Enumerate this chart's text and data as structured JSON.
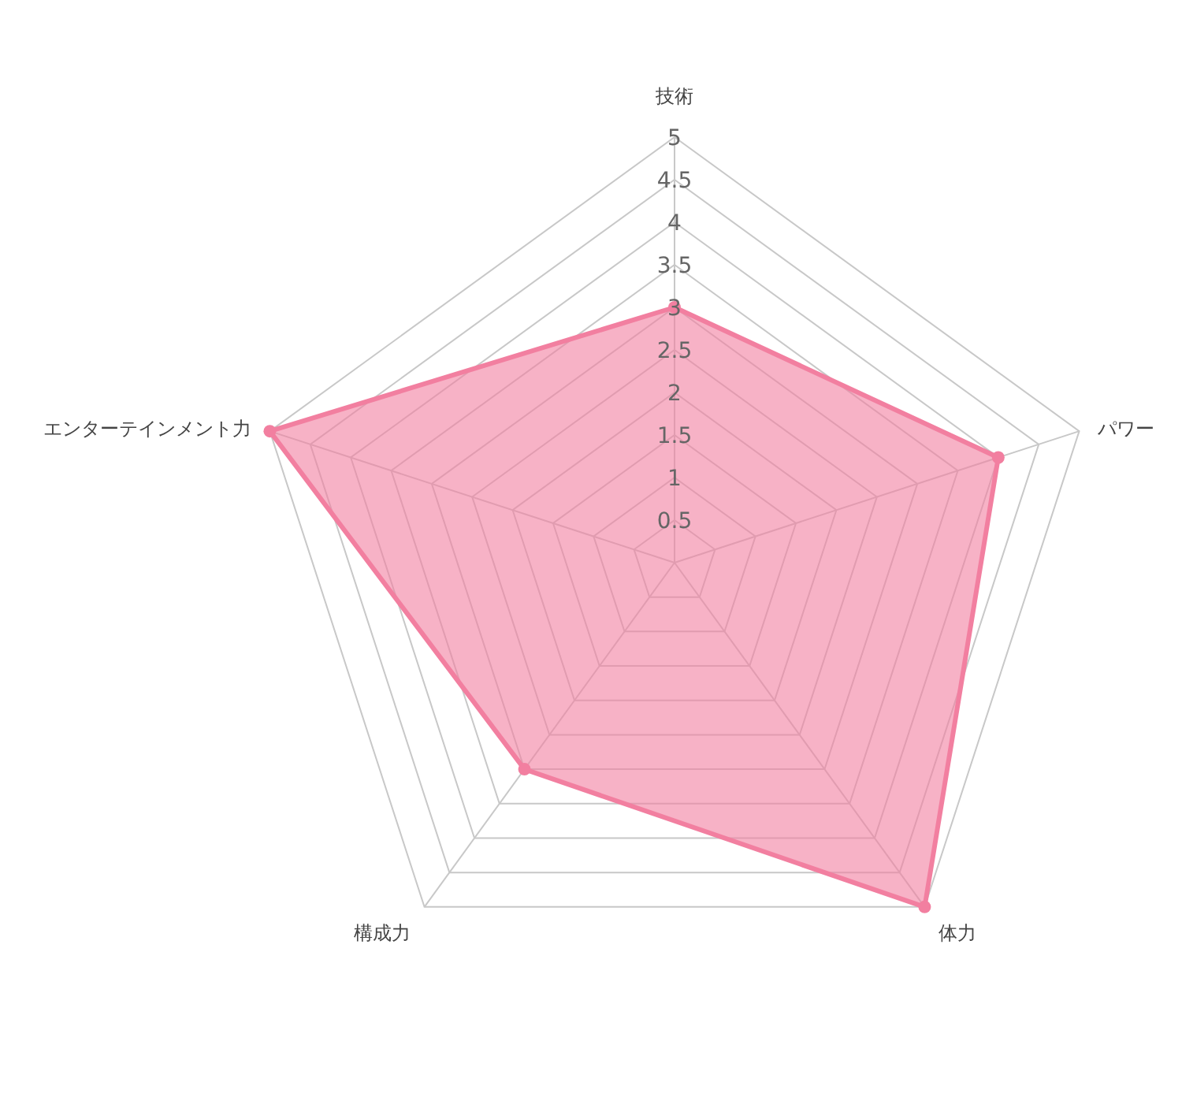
{
  "chart_data": {
    "type": "radar",
    "categories": [
      "技術",
      "パワー",
      "体力",
      "構成力",
      "エンターテインメント力"
    ],
    "series": [
      {
        "color": "#f27fa0",
        "values": [
          3,
          4,
          5,
          3,
          5
        ]
      }
    ],
    "ylim": [
      0,
      5
    ],
    "yticks": [
      0.5,
      1,
      1.5,
      2,
      2.5,
      3,
      3.5,
      4,
      4.5,
      5
    ],
    "grid": true,
    "marker": "circle"
  }
}
